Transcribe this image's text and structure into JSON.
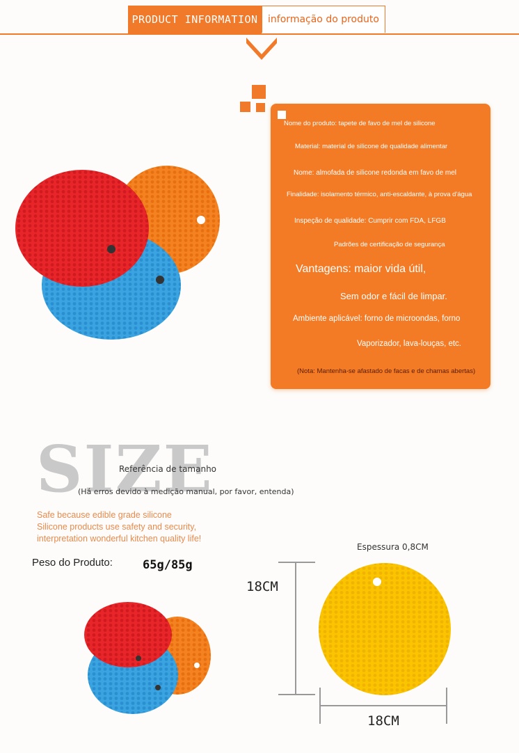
{
  "header": {
    "left_label": "PRODUCT INFORMATION",
    "right_label": "informação do produto"
  },
  "info": {
    "lines": [
      "Nome do produto: tapete de favo de mel de silicone",
      "Material: material de silicone de qualidade alimentar",
      "Nome: almofada de silicone redonda em favo de mel",
      "Finalidade: isolamento térmico, anti-escaldante, à prova d'água",
      "Inspeção de qualidade: Cumprir com FDA, LFGB",
      "Padrões de certificação de segurança",
      "Vantagens: maior vida útil,",
      "Sem odor e fácil de limpar.",
      "Ambiente aplicável: forno de microondas, forno",
      "Vaporizador, lava-louças, etc.",
      "(Nota: Mantenha-se afastado de facas e de chamas abertas)"
    ]
  },
  "size": {
    "watermark": "SIZE",
    "reference_title": "Referência de tamanho",
    "reference_note": "(Há erros devido à medição manual, por favor, entenda)",
    "english_lines": [
      "Safe because edible grade silicone",
      "Silicone products use safety and security,",
      "interpretation wonderful kitchen quality life!"
    ],
    "weight_label": "Peso do Produto:",
    "weight_value": "65g/85g",
    "thickness": "Espessura 0,8CM",
    "height": "18CM",
    "width": "18CM"
  },
  "colors": {
    "accent": "#f07a2a",
    "red_mat": "#e8262a",
    "orange_mat": "#f58220",
    "blue_mat": "#3aa3e0",
    "yellow_mat": "#fbc400"
  }
}
